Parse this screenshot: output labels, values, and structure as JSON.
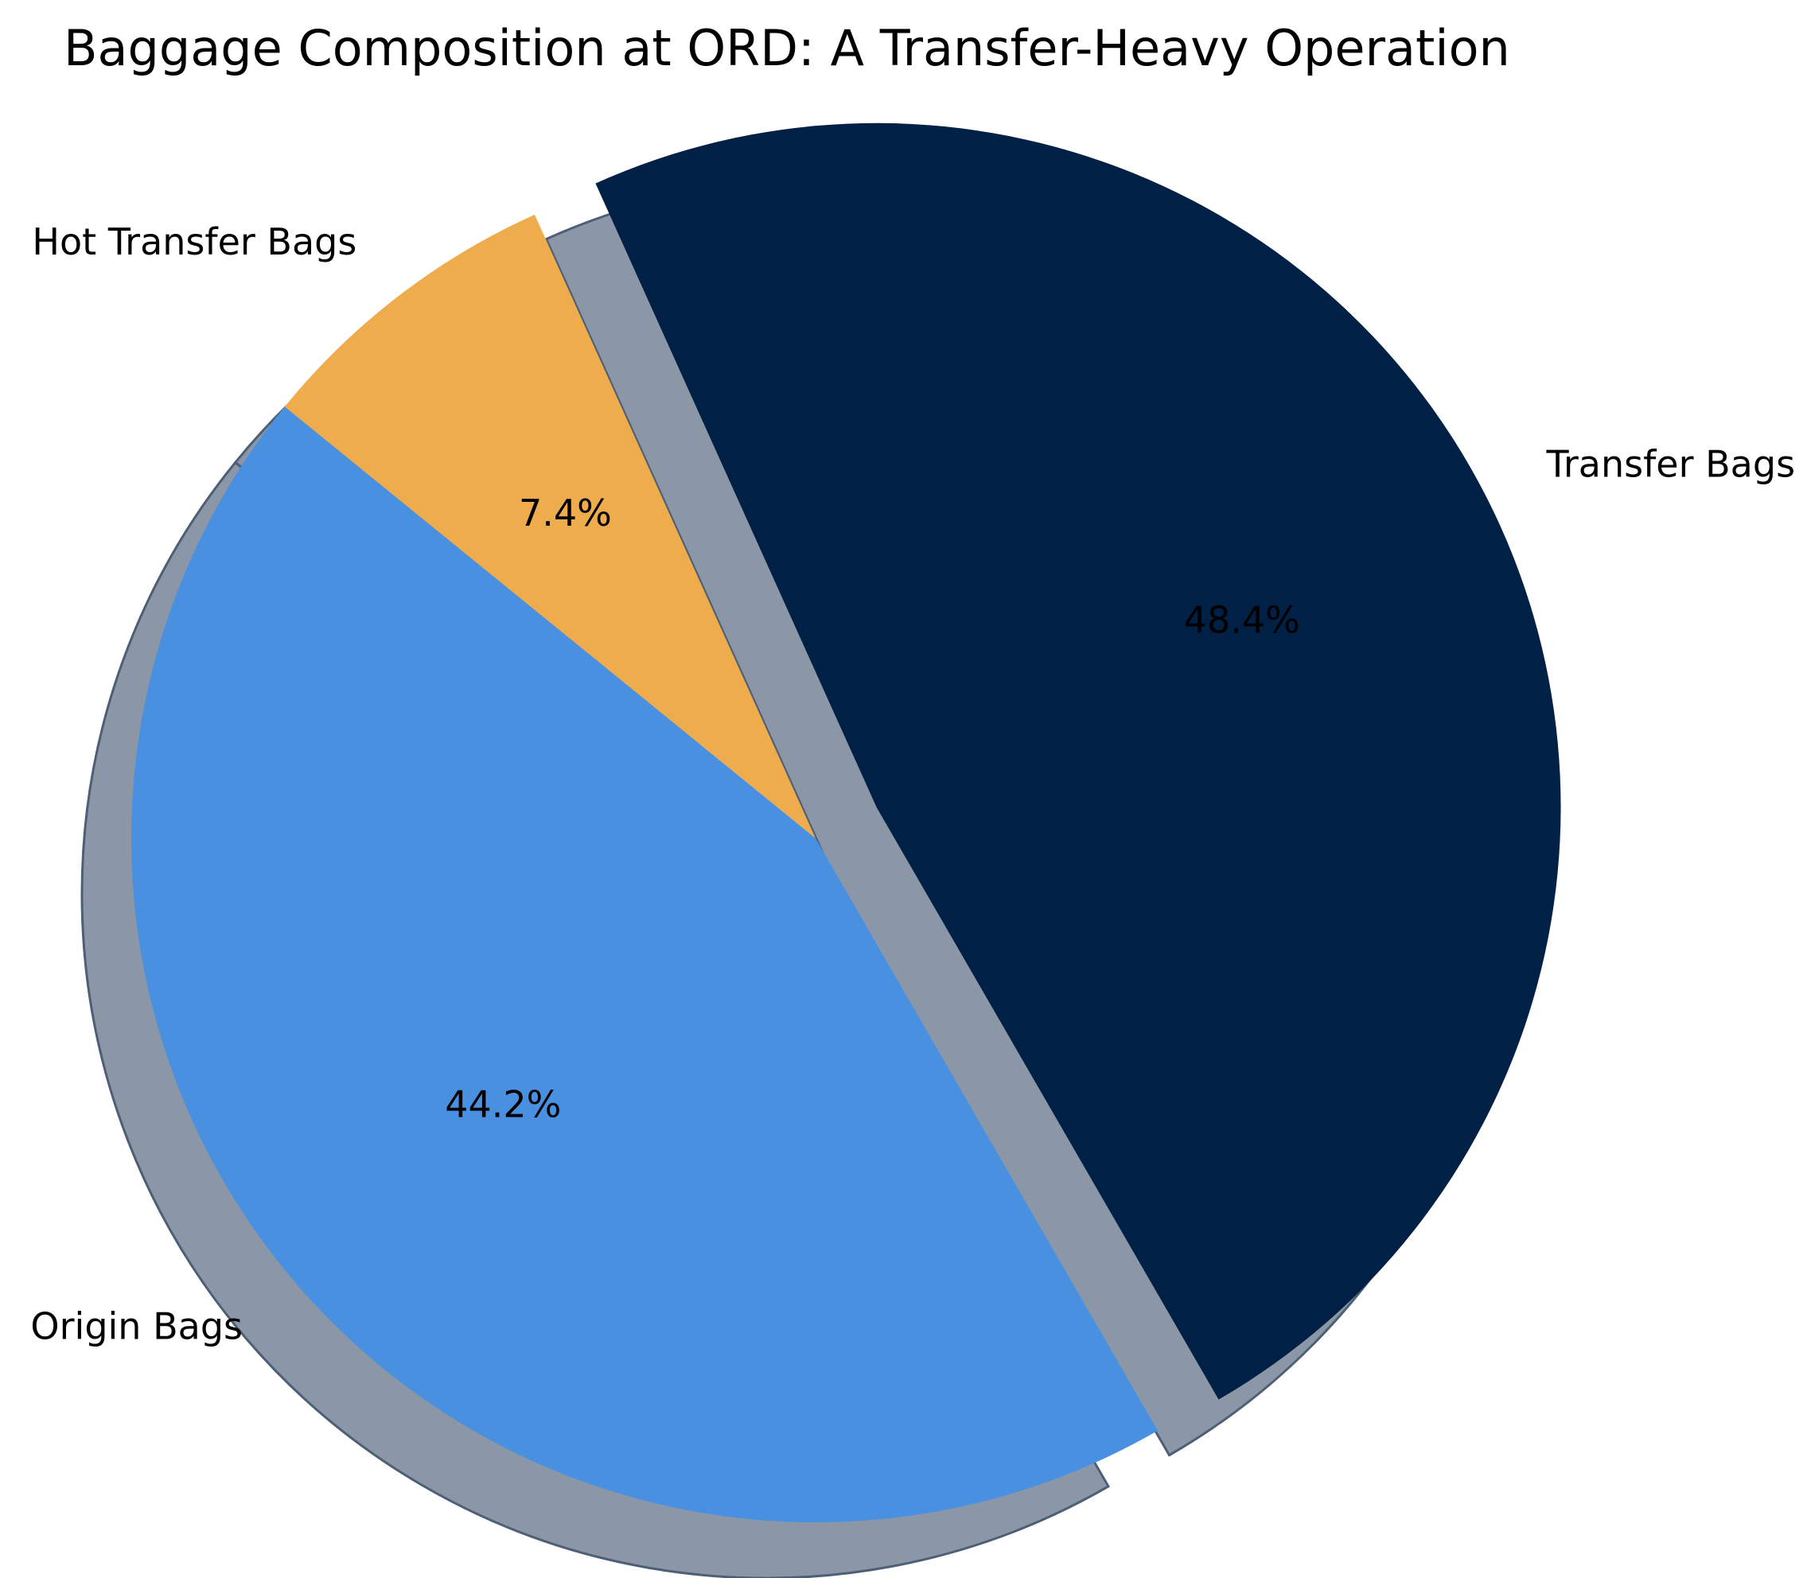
{
  "chart_data": {
    "type": "pie",
    "title": "Baggage Composition at ORD: A Transfer-Heavy Operation",
    "start_angle_deg": 300,
    "direction": "counterclockwise",
    "shadow": true,
    "slices": [
      {
        "label": "Transfer Bags",
        "value": 48.4,
        "pct_label": "48.4%",
        "color": "#002045",
        "exploded": true
      },
      {
        "label": "Hot Transfer Bags",
        "value": 7.4,
        "pct_label": "7.4%",
        "color": "#EEAC4D",
        "exploded": false
      },
      {
        "label": "Origin Bags",
        "value": 44.2,
        "pct_label": "44.2%",
        "color": "#4A90E0",
        "exploded": false
      }
    ],
    "shadow_color": "#4D5F76"
  }
}
